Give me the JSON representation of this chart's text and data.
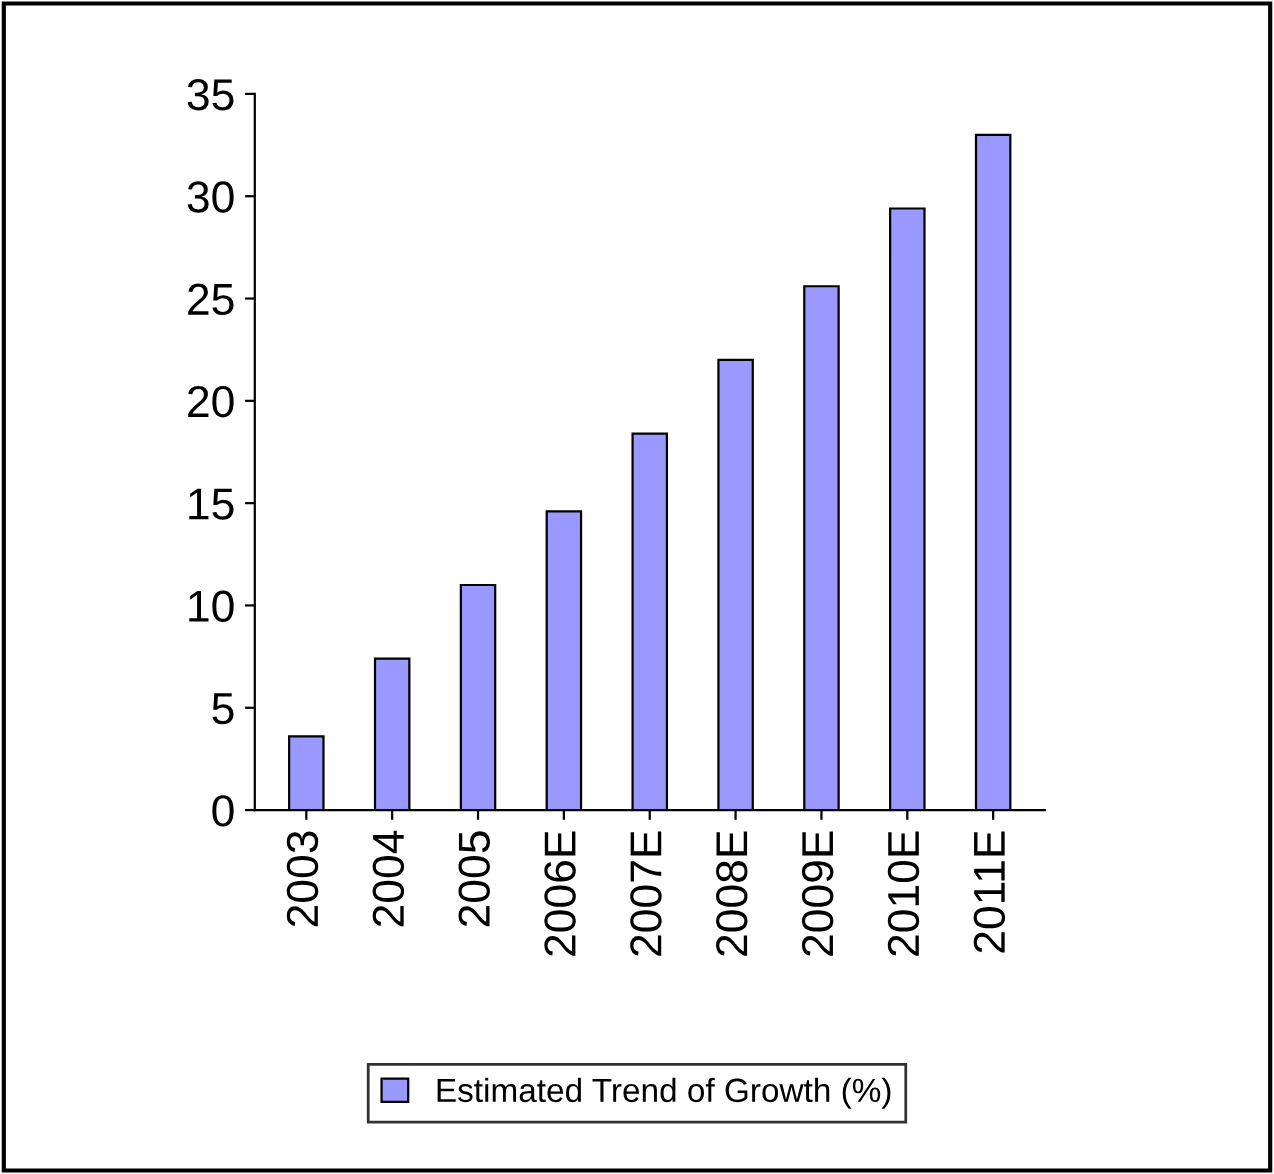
{
  "chart_data": {
    "type": "bar",
    "categories": [
      "2003",
      "2004",
      "2005",
      "2006E",
      "2007E",
      "2008E",
      "2009E",
      "2010E",
      "2011E"
    ],
    "series": [
      {
        "name": "Estimated Trend of Growth (%)",
        "color": "#9999ff",
        "values": [
          3.6,
          7.4,
          11.0,
          14.6,
          18.4,
          22.0,
          25.6,
          29.4,
          33.0
        ]
      }
    ],
    "ylim": [
      0,
      35
    ],
    "yticks": [
      0,
      5,
      10,
      15,
      20,
      25,
      30,
      35
    ],
    "grid": false,
    "legend": "bottom"
  }
}
